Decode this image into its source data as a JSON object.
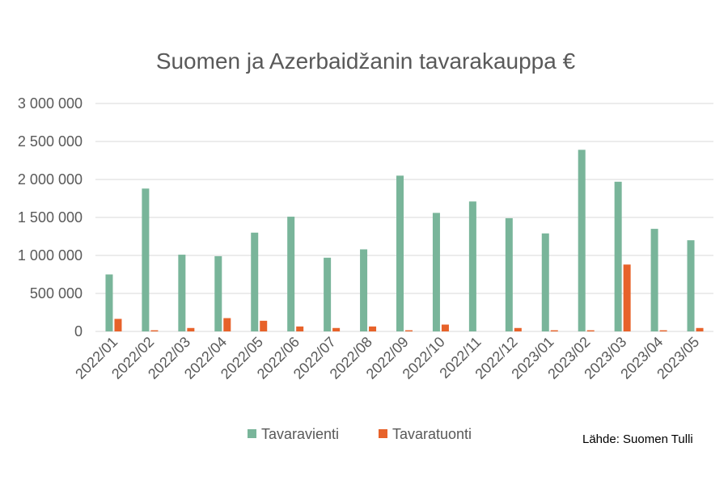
{
  "chart_data": {
    "type": "bar",
    "title": "Suomen ja Azerbaidžanin tavarakauppa €",
    "xlabel": "",
    "ylabel": "",
    "ylim": [
      0,
      3000000
    ],
    "yticks": [
      0,
      500000,
      1000000,
      1500000,
      2000000,
      2500000,
      3000000
    ],
    "ytick_labels": [
      "0",
      "500 000",
      "1 000 000",
      "1 500 000",
      "2 000 000",
      "2 500 000",
      "3 000 000"
    ],
    "grid": true,
    "legend_position": "bottom",
    "categories": [
      "2022/01",
      "2022/02",
      "2022/03",
      "2022/04",
      "2022/05",
      "2022/06",
      "2022/07",
      "2022/08",
      "2022/09",
      "2022/10",
      "2022/11",
      "2022/12",
      "2023/01",
      "2023/02",
      "2023/03",
      "2023/04",
      "2023/05"
    ],
    "series": [
      {
        "name": "Tavaravienti",
        "color": "#79b59a",
        "values": [
          750000,
          1880000,
          1010000,
          990000,
          1300000,
          1510000,
          970000,
          1080000,
          2050000,
          1560000,
          1710000,
          1490000,
          1290000,
          2390000,
          1970000,
          1350000,
          1200000
        ]
      },
      {
        "name": "Tavaratuonti",
        "color": "#e7622a",
        "values": [
          165000,
          15000,
          45000,
          175000,
          140000,
          65000,
          45000,
          65000,
          15000,
          90000,
          0,
          45000,
          15000,
          15000,
          880000,
          15000,
          45000
        ]
      }
    ],
    "source": "Lähde: Suomen Tulli"
  }
}
